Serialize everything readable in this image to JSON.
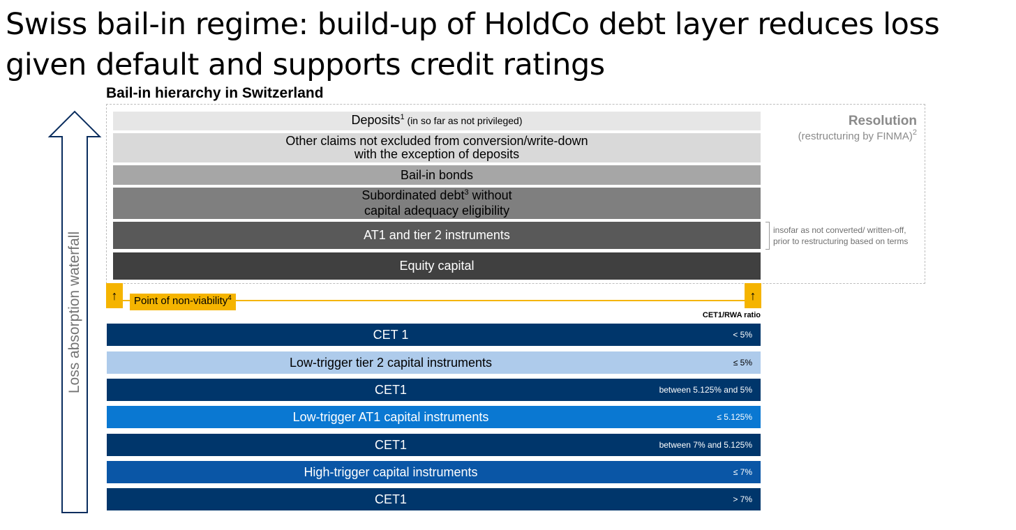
{
  "title": "Swiss bail-in regime: build-up of HoldCo debt layer reduces loss\ngiven default and supports credit ratings",
  "subtitle": "Bail-in hierarchy in Switzerland",
  "waterfall_label": "Loss absorption waterfall",
  "resolution": {
    "title": "Resolution",
    "subtitle": "(restructuring by FINMA)",
    "subtitle_footnote": "2"
  },
  "hierarchy": [
    {
      "text": "Deposits",
      "footnote": "1",
      "suffix": " (in so far as not privileged)",
      "color": "#e6e6e6",
      "text_color": "#000000"
    },
    {
      "line1": "Other claims not excluded from conversion/write-down",
      "line2": "with the exception of deposits",
      "color": "#d9d9d9",
      "text_color": "#000000"
    },
    {
      "text": "Bail-in bonds",
      "color": "#a6a6a6",
      "text_color": "#000000"
    },
    {
      "line1_a": "Subordinated debt",
      "footnote": "3",
      "line1_b": " without",
      "line2": "capital adequacy eligibility",
      "color": "#7f7f7f",
      "text_color": "#000000"
    },
    {
      "text": "AT1 and tier 2 instruments",
      "color": "#595959",
      "text_color": "#ffffff"
    },
    {
      "text": "Equity capital",
      "color": "#404040",
      "text_color": "#ffffff"
    }
  ],
  "bracket_note": "insofar as not converted/ written-off,\nprior to restructuring based on terms",
  "point_of_non_viability": {
    "text": "Point of non-viability",
    "footnote": "4",
    "arrow": "↑",
    "color": "#f5b400"
  },
  "ratio_header": "CET1/RWA ratio",
  "tiers": [
    {
      "label": "CET 1",
      "ratio": "< 5%",
      "color": "#00366b",
      "text_color": "#ffffff"
    },
    {
      "label": "Low-trigger tier 2 capital instruments",
      "ratio": "≤ 5%",
      "color": "#aecbeb",
      "text_color": "#000000"
    },
    {
      "label": "CET1",
      "ratio": "between 5.125% and 5%",
      "color": "#00366b",
      "text_color": "#ffffff"
    },
    {
      "label": "Low-trigger AT1 capital instruments",
      "ratio": "≤ 5.125%",
      "color": "#0a78d2",
      "text_color": "#ffffff"
    },
    {
      "label": "CET1",
      "ratio": "between 7% and 5.125%",
      "color": "#00366b",
      "text_color": "#ffffff"
    },
    {
      "label": "High-trigger capital instruments",
      "ratio": "≤ 7%",
      "color": "#0a56a6",
      "text_color": "#ffffff"
    },
    {
      "label": "CET1",
      "ratio": "> 7%",
      "color": "#00366b",
      "text_color": "#ffffff"
    }
  ]
}
